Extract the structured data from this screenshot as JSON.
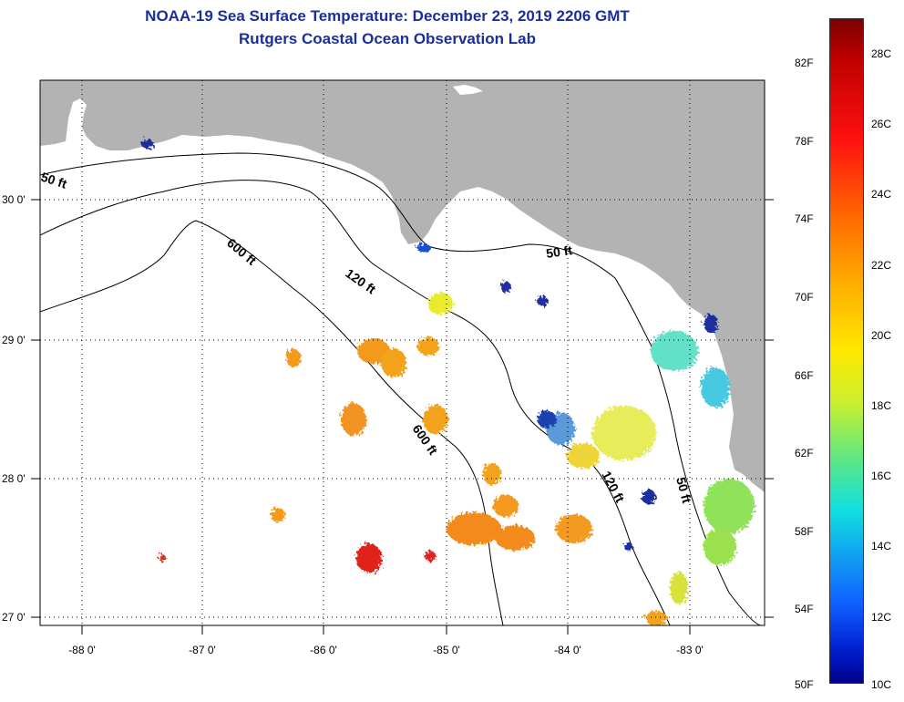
{
  "title": {
    "line1": "NOAA-19 Sea Surface Temperature:  December 23, 2019 2206 GMT",
    "line2": "Rutgers Coastal Ocean Observation Lab"
  },
  "axes": {
    "latitude_labels": [
      "30 0'",
      "29 0'",
      "28 0'",
      "27 0'"
    ],
    "longitude_labels": [
      "-88 0'",
      "-87 0'",
      "-86 0'",
      "-85 0'",
      "-84 0'",
      "-83 0'"
    ]
  },
  "contours": {
    "c50": "50 ft",
    "c120": "120 ft",
    "c600": "600 ft"
  },
  "colorbar": {
    "fahrenheit_labels": [
      "82F",
      "78F",
      "74F",
      "70F",
      "66F",
      "62F",
      "58F",
      "54F",
      "50F"
    ],
    "celsius_labels": [
      "28C",
      "26C",
      "24C",
      "22C",
      "20C",
      "18C",
      "16C",
      "14C",
      "12C",
      "10C"
    ],
    "range_c": [
      10,
      29
    ]
  },
  "colors": {
    "land": "#b3b3b3",
    "ocean": "#ffffff",
    "title": "#1a2f9c"
  }
}
